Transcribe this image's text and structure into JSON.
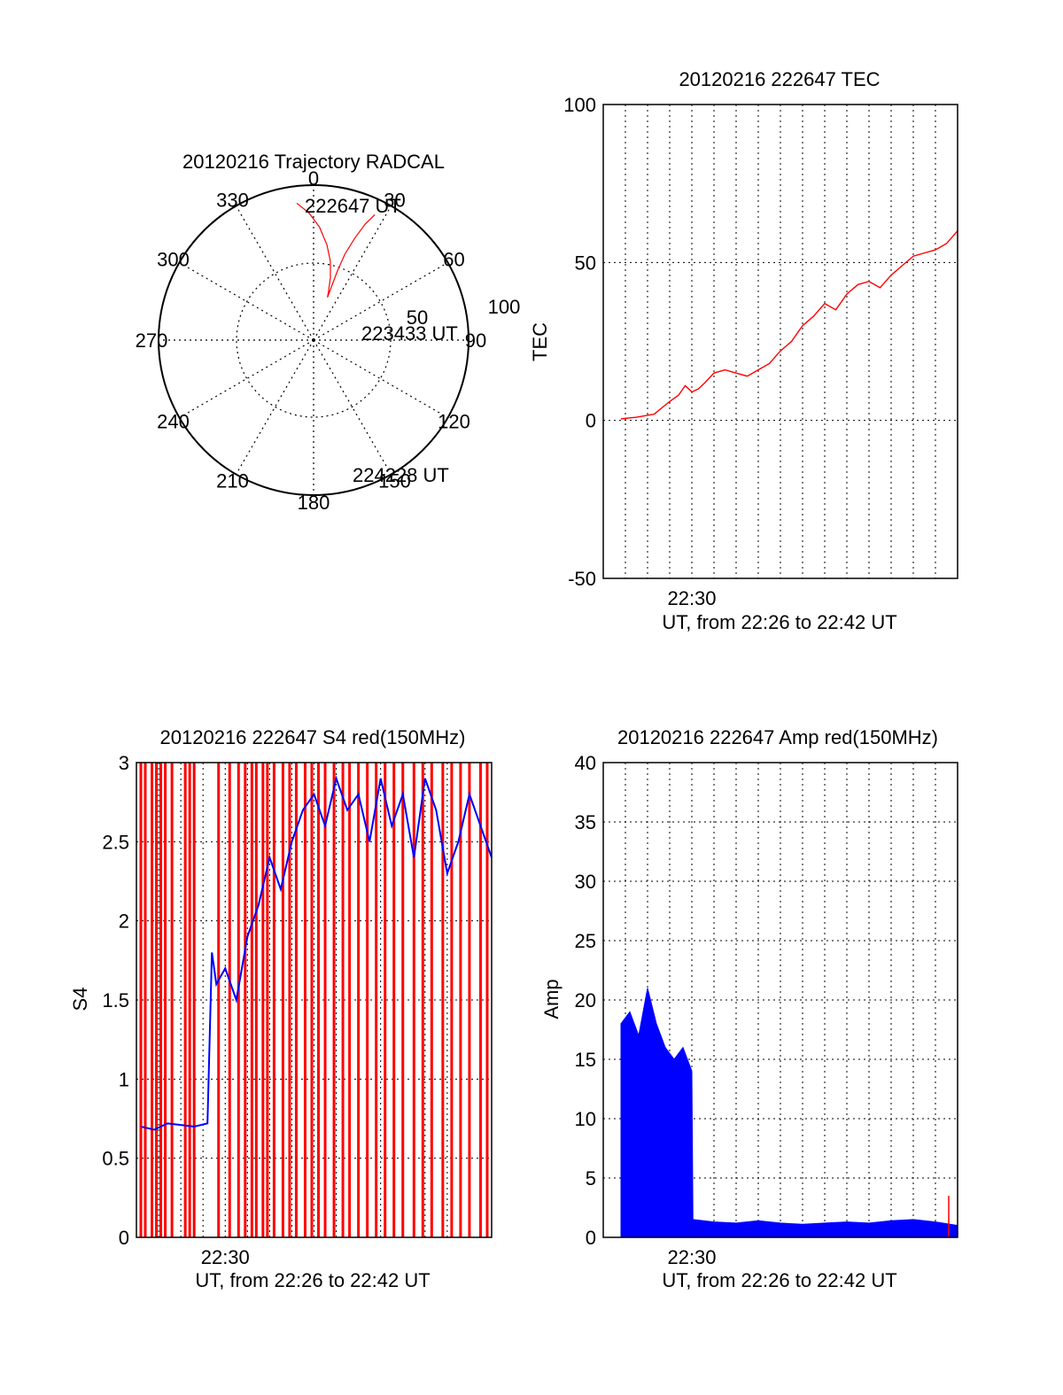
{
  "colors": {
    "tec": "#ff0000",
    "s4": "#0000ff",
    "s4_spikes": "#ff0000",
    "amp": "#0000ff",
    "amp_spike": "#ff0000",
    "grid": "#000000"
  },
  "chart_data": [
    {
      "id": "trajectory",
      "type": "polar",
      "title": "20120216 Trajectory RADCAL",
      "angle_labels": [
        "0",
        "30",
        "60",
        "90",
        "120",
        "150",
        "180",
        "210",
        "240",
        "270",
        "300",
        "330"
      ],
      "radius_labels": [
        "50",
        "100"
      ],
      "rlim": [
        0,
        100
      ],
      "grid": true,
      "track": {
        "azimuth": [
          353,
          358,
          3,
          8,
          12,
          15,
          17,
          18,
          18.5,
          19,
          20,
          22,
          24,
          26
        ],
        "range": [
          89,
          82,
          73,
          62,
          52,
          42,
          33,
          29,
          36,
          47,
          59,
          71,
          82,
          90
        ]
      },
      "annotations": [
        {
          "text": "222647 UT",
          "azimuth": 353,
          "range": 89
        },
        {
          "text": "223433 UT",
          "azimuth": 90,
          "range": 30
        },
        {
          "text": "224228 UT",
          "azimuth": 26,
          "range": 90
        }
      ]
    },
    {
      "id": "tec",
      "type": "line",
      "title": "20120216 222647 TEC",
      "xlabel": "UT, from 22:26 to 22:42 UT",
      "ylabel": "TEC",
      "x_ticks": [
        {
          "x": 4,
          "label": "22:30"
        }
      ],
      "xlim": [
        0,
        16
      ],
      "ylim": [
        -50,
        100
      ],
      "y_ticks": [
        -50,
        0,
        50,
        100
      ],
      "grid": true,
      "series": [
        {
          "x": [
            0.8,
            1.5,
            2.3,
            3.0,
            3.4,
            3.7,
            4.0,
            4.3,
            4.6,
            5.0,
            5.5,
            6.0,
            6.5,
            7.0,
            7.5,
            8.0,
            8.5,
            9.0,
            9.5,
            10.0,
            10.5,
            11.0,
            11.5,
            12.0,
            12.5,
            13.0,
            13.5,
            14.0,
            14.5,
            15.0,
            15.5,
            16.0
          ],
          "y": [
            0.5,
            1.0,
            2.0,
            6.0,
            8.0,
            11.0,
            9.0,
            10.0,
            12.0,
            15.0,
            16.0,
            15.0,
            14.0,
            16.0,
            18.0,
            22.0,
            25.0,
            30.0,
            33.0,
            37.0,
            35.0,
            40.0,
            43.0,
            44.0,
            42.0,
            46.0,
            49.0,
            52.0,
            53.0,
            54.0,
            56.0,
            60.0
          ]
        }
      ]
    },
    {
      "id": "s4",
      "type": "line",
      "title": "20120216 222647 S4 red(150MHz)",
      "xlabel": "UT, from 22:26 to 22:42 UT",
      "ylabel": "S4",
      "x_ticks": [
        {
          "x": 4,
          "label": "22:30"
        }
      ],
      "xlim": [
        0,
        16
      ],
      "ylim": [
        0,
        3
      ],
      "y_ticks": [
        0,
        0.5,
        1,
        1.5,
        2,
        2.5,
        3
      ],
      "y_tick_labels": [
        "0",
        "0.5",
        "1",
        "1.5",
        "2",
        "2.5",
        "3"
      ],
      "grid": true,
      "series": [
        {
          "x": [
            0.2,
            0.8,
            1.4,
            2.0,
            2.6,
            3.2,
            3.4,
            3.6,
            4.0,
            4.5,
            5.0,
            5.5,
            6.0,
            6.5,
            7.0,
            7.5,
            8.0,
            8.5,
            9.0,
            9.5,
            10.0,
            10.5,
            11.0,
            11.5,
            12.0,
            12.5,
            13.0,
            13.5,
            14.0,
            14.5,
            15.0,
            15.5,
            16.0
          ],
          "y": [
            0.7,
            0.68,
            0.72,
            0.71,
            0.7,
            0.72,
            1.8,
            1.6,
            1.7,
            1.5,
            1.9,
            2.1,
            2.4,
            2.2,
            2.5,
            2.7,
            2.8,
            2.6,
            2.9,
            2.7,
            2.8,
            2.5,
            2.9,
            2.6,
            2.8,
            2.4,
            2.9,
            2.7,
            2.3,
            2.5,
            2.8,
            2.6,
            2.4
          ]
        }
      ],
      "spikes_at_x": [
        0.2,
        0.4,
        0.7,
        0.9,
        1.1,
        1.3,
        1.6,
        2.2,
        2.4,
        2.6,
        3.7,
        4.2,
        4.6,
        4.9,
        5.2,
        5.4,
        5.7,
        5.9,
        6.2,
        6.6,
        6.9,
        7.2,
        7.6,
        7.9,
        8.2,
        8.5,
        8.9,
        9.3,
        9.6,
        10.0,
        10.4,
        10.8,
        11.2,
        11.6,
        12.0,
        12.5,
        12.9,
        13.3,
        13.8,
        14.2,
        14.6,
        15.0,
        15.5,
        15.8
      ]
    },
    {
      "id": "amp",
      "type": "line",
      "title": "20120216 222647 Amp red(150MHz)",
      "xlabel": "UT, from 22:26 to 22:42 UT",
      "ylabel": "Amp",
      "x_ticks": [
        {
          "x": 4,
          "label": "22:30"
        }
      ],
      "xlim": [
        0,
        16
      ],
      "ylim": [
        0,
        40
      ],
      "y_ticks": [
        0,
        5,
        10,
        15,
        20,
        25,
        30,
        35,
        40
      ],
      "grid": true,
      "envelope": {
        "x": [
          0.8,
          1.2,
          1.6,
          2.0,
          2.4,
          2.8,
          3.2,
          3.6,
          4.0,
          4.05,
          5,
          6,
          7,
          8,
          9,
          10,
          11,
          12,
          13,
          14,
          15,
          16
        ],
        "y": [
          18.0,
          19.0,
          17.0,
          21.0,
          18.0,
          16.0,
          15.0,
          16.0,
          14.0,
          1.5,
          1.3,
          1.2,
          1.4,
          1.2,
          1.1,
          1.2,
          1.3,
          1.2,
          1.4,
          1.5,
          1.3,
          1.0
        ]
      },
      "spike": {
        "x": 15.6,
        "y": 3.5
      }
    }
  ]
}
